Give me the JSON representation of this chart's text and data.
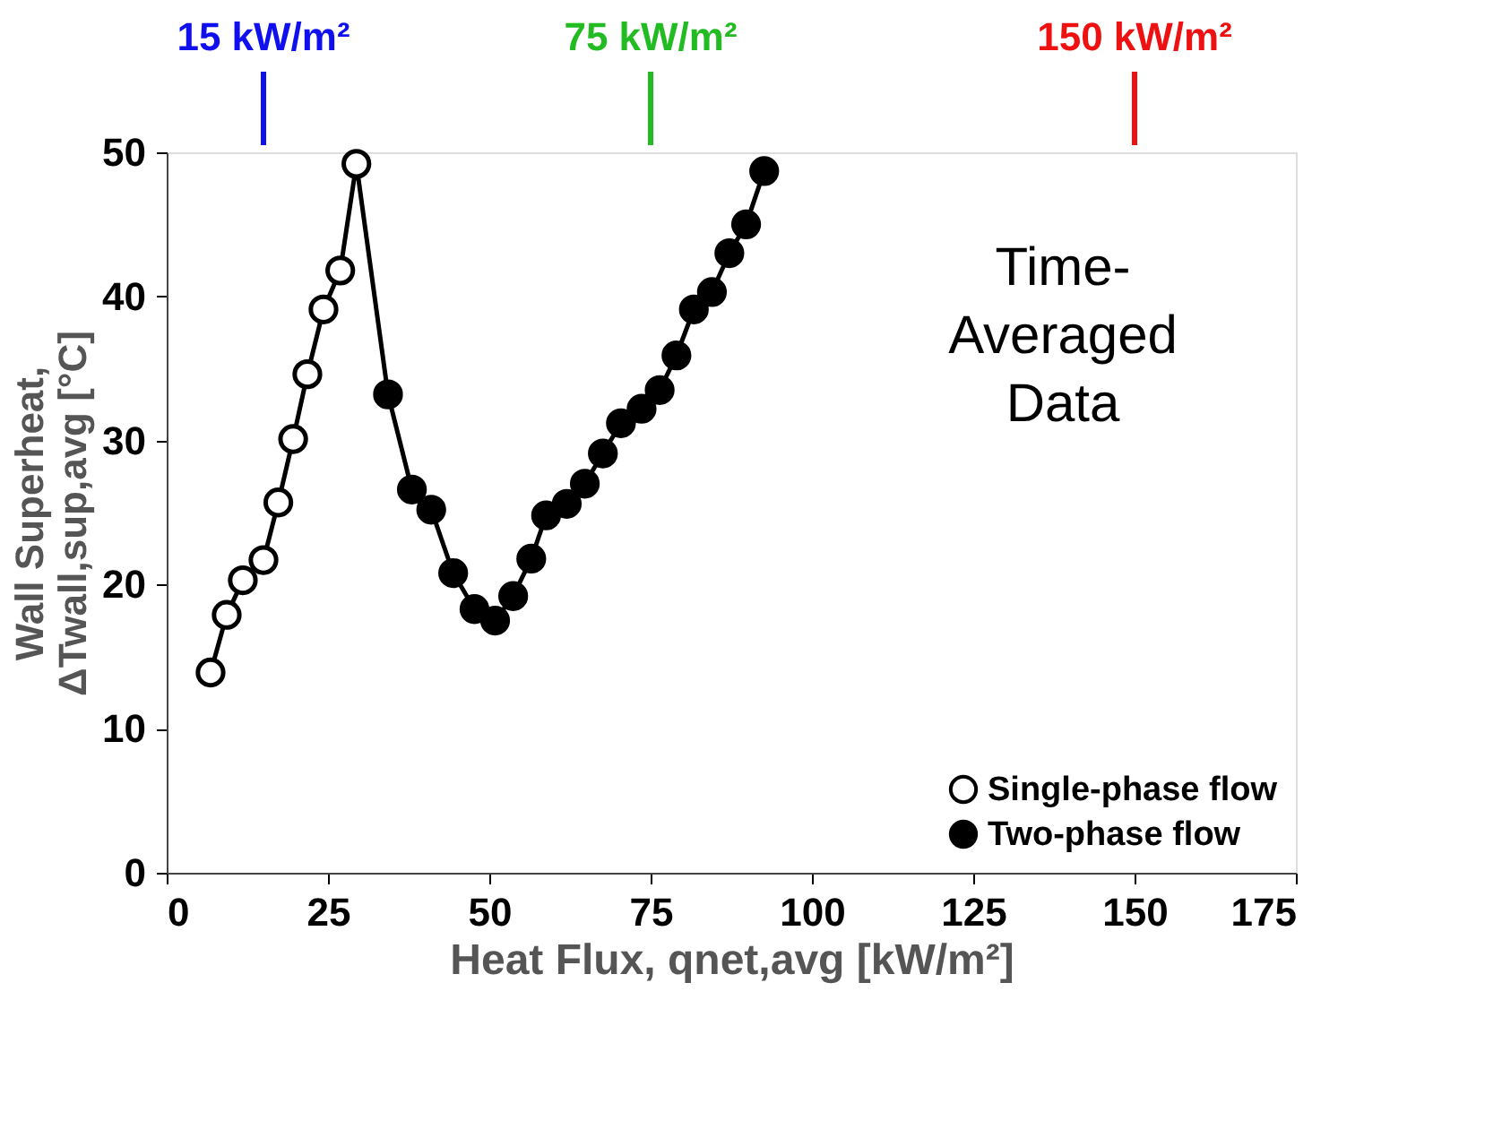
{
  "chart_data": {
    "type": "scatter",
    "xlabel": "Heat Flux, qnet,avg [kW/m²]",
    "ylabel": "Wall Superheat, ΔTwall,sup,avg [°C]",
    "xlim": [
      0,
      175
    ],
    "xticks": [
      0,
      25,
      50,
      75,
      100,
      125,
      150,
      175
    ],
    "ylim": [
      0,
      50
    ],
    "yticks": [
      0,
      10,
      20,
      30,
      40,
      50
    ],
    "grid": false,
    "legend": "bottom right",
    "marker": "circle",
    "series": [
      {
        "type": "line",
        "color": "#000000",
        "marker": "none",
        "line_style": "solid",
        "x": [
          6.8,
          9.3,
          11.8,
          15.0,
          17.3,
          19.6,
          21.8,
          24.3,
          26.9,
          29.4,
          34.3,
          38.0,
          41.0,
          44.4,
          47.7,
          50.9,
          53.7,
          56.5,
          58.8,
          62.0,
          64.8,
          67.6,
          70.4,
          73.6,
          76.4,
          79.0,
          81.7,
          84.5,
          87.2,
          89.8,
          92.6
        ],
        "values": [
          13.9,
          17.9,
          20.3,
          21.7,
          25.7,
          30.1,
          34.6,
          39.1,
          41.8,
          49.2,
          33.2,
          26.6,
          25.2,
          20.8,
          18.3,
          17.5,
          19.2,
          21.8,
          24.8,
          25.6,
          27.0,
          29.1,
          31.2,
          32.2,
          33.5,
          35.9,
          39.1,
          40.3,
          43.0,
          45.0,
          48.7
        ]
      },
      {
        "name": "Single-phase flow",
        "color": "#ffffff",
        "x": [
          6.8,
          9.3,
          11.8,
          15.0,
          17.3,
          19.6,
          21.8,
          24.3,
          26.9,
          29.4
        ],
        "values": [
          13.9,
          17.9,
          20.3,
          21.7,
          25.7,
          30.1,
          34.6,
          39.1,
          41.8,
          49.2
        ]
      },
      {
        "name": "Two-phase flow",
        "color": "#000000",
        "x": [
          34.3,
          38.0,
          41.0,
          44.4,
          47.7,
          50.9,
          53.7,
          56.5,
          58.8,
          62.0,
          64.8,
          67.6,
          70.4,
          73.6,
          76.4,
          79.0,
          81.7,
          84.5,
          87.2,
          89.8,
          92.6
        ],
        "values": [
          33.2,
          26.6,
          25.2,
          20.8,
          18.3,
          17.5,
          19.2,
          21.8,
          24.8,
          25.6,
          27.0,
          29.1,
          31.2,
          32.2,
          33.5,
          35.9,
          39.1,
          40.3,
          43.0,
          45.0,
          48.7
        ]
      }
    ],
    "ref_lines": [
      {
        "axis": "x",
        "value": 15,
        "label": "15 kW/m²",
        "color": "#1010ee"
      },
      {
        "axis": "x",
        "value": 75,
        "label": "75 kW/m²",
        "color": "#22bb22"
      },
      {
        "axis": "x",
        "value": 150,
        "label": "150 kW/m²",
        "color": "#ee1111"
      }
    ],
    "annotations": [
      "Time-Averaged Data"
    ]
  }
}
